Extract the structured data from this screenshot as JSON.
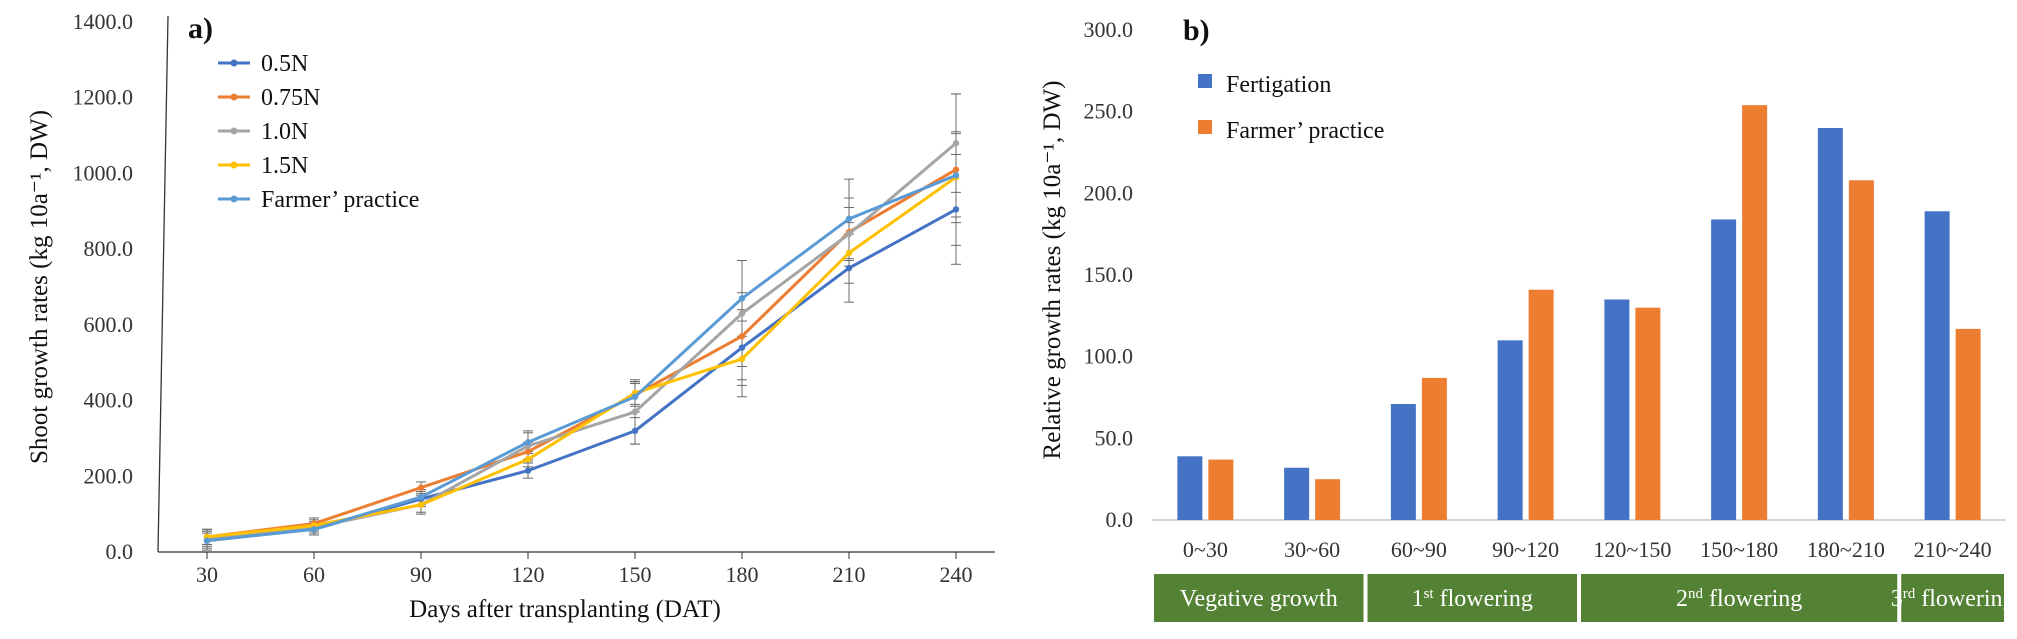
{
  "chart_data": [
    {
      "type": "line",
      "panel_label": "a)",
      "xlabel": "Days after transplanting (DAT)",
      "ylabel": "Shoot growth rates (kg 10a⁻¹, DW)",
      "x": [
        30,
        60,
        90,
        120,
        150,
        180,
        210,
        240
      ],
      "y_ticks": [
        "0.0",
        "200.0",
        "400.0",
        "600.0",
        "800.0",
        "1000.0",
        "1200.0",
        "1400.0"
      ],
      "ylim": [
        0,
        1400
      ],
      "grid": false,
      "legend_position": "top-left",
      "series": [
        {
          "name": "0.5N",
          "color": "#4472C4",
          "values": [
            30,
            60,
            140,
            215,
            320,
            540,
            750,
            905
          ],
          "errors": [
            20,
            15,
            20,
            20,
            35,
            100,
            90,
            145
          ]
        },
        {
          "name": "0.75N",
          "color": "#ED7D31",
          "values": [
            40,
            75,
            170,
            265,
            415,
            570,
            845,
            1010
          ],
          "errors": [
            20,
            15,
            15,
            25,
            30,
            115,
            90,
            200
          ]
        },
        {
          "name": "1.0N",
          "color": "#A5A5A5",
          "values": [
            35,
            65,
            125,
            280,
            370,
            630,
            840,
            1080
          ],
          "errors": [
            20,
            15,
            25,
            35,
            85,
            140,
            70,
            130
          ]
        },
        {
          "name": "1.5N",
          "color": "#FFC000",
          "values": [
            40,
            70,
            125,
            245,
            420,
            510,
            790,
            990
          ],
          "errors": [
            20,
            15,
            20,
            20,
            30,
            100,
            80,
            120
          ]
        },
        {
          "name": "Farmer’ practice",
          "color": "#5B9BD5",
          "values": [
            30,
            60,
            145,
            290,
            410,
            670,
            880,
            995
          ],
          "errors": [
            25,
            15,
            20,
            30,
            40,
            100,
            105,
            110
          ]
        }
      ]
    },
    {
      "type": "bar",
      "panel_label": "b)",
      "xlabel": "",
      "ylabel": "Relative growth rates (kg 10a⁻¹, DW)",
      "categories": [
        "0~30",
        "30~60",
        "60~90",
        "90~120",
        "120~150",
        "150~180",
        "180~210",
        "210~240"
      ],
      "y_ticks": [
        "0.0",
        "50.0",
        "100.0",
        "150.0",
        "200.0",
        "250.0",
        "300.0"
      ],
      "ylim": [
        0,
        300
      ],
      "grid": false,
      "legend_position": "top-left",
      "series": [
        {
          "name": "Fertigation",
          "color": "#4472C4",
          "values": [
            39,
            32,
            71,
            110,
            135,
            184,
            240,
            189
          ]
        },
        {
          "name": "Farmer’ practice",
          "color": "#ED7D31",
          "values": [
            37,
            25,
            87,
            141,
            130,
            254,
            208,
            117
          ]
        }
      ],
      "stages": [
        {
          "base": "Vegative growth",
          "sup": "",
          "rest": "",
          "from": 0,
          "to": 1
        },
        {
          "base": "1",
          "sup": "st",
          "rest": " flowering",
          "from": 2,
          "to": 3
        },
        {
          "base": "2",
          "sup": "nd",
          "rest": " flowering",
          "from": 4,
          "to": 6
        },
        {
          "base": "3",
          "sup": "rd",
          "rest": " flowering",
          "from": 7,
          "to": 7
        }
      ],
      "stage_color": "#548235"
    }
  ]
}
